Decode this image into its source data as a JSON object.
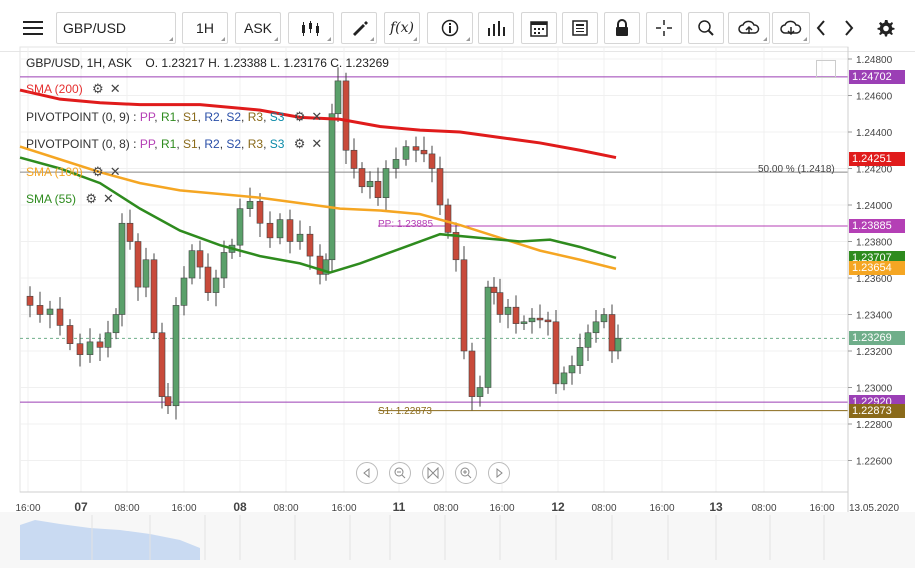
{
  "toolbar": {
    "menu_icon": "hamburger-icon",
    "symbol": "GBP/USD",
    "timeframe": "1H",
    "price_side": "ASK",
    "icons": [
      "candles-icon",
      "draw-icon",
      "fx-icon",
      "info-icon",
      "bars-icon",
      "calendar-icon",
      "news-icon",
      "lock-icon",
      "crosshair-icon",
      "zoom-icon",
      "cloud-upload-icon",
      "cloud-download-icon",
      "chevron-left-icon",
      "chevron-right-icon",
      "gear-icon"
    ]
  },
  "chart": {
    "header": "GBP/USD, 1H, ASK",
    "ohlc": "O. 1.23217 H. 1.23388 L. 1.23176 C. 1.23269",
    "indicators": [
      {
        "label": "SMA (200)",
        "color": "#e53030"
      },
      {
        "label": "PIVOTPOINT (0, 9)",
        "color": "#222222"
      },
      {
        "label": "PIVOTPOINT (0, 8)",
        "color": "#222222"
      },
      {
        "label": "SMA (100)",
        "color": "#f5a623"
      },
      {
        "label": "SMA (55)",
        "color": "#2e8b1e"
      }
    ],
    "pivot_levels_a": [
      "PP",
      "R1",
      "S1",
      "R2",
      "S2",
      "R3",
      "S3"
    ],
    "pivot_levels_b": [
      "PP",
      "R1",
      "S1",
      "R2",
      "S2",
      "R3",
      "S3"
    ],
    "fib_label": "50.00 % (1.2418)",
    "pp_label": "PP: 1.23885",
    "s1_label": "S1: 1.22873",
    "y_ticks": [
      "1.24800",
      "1.24600",
      "1.24400",
      "1.24200",
      "1.24000",
      "1.23800",
      "1.23600",
      "1.23400",
      "1.23200",
      "1.23000",
      "1.22800",
      "1.22600"
    ],
    "badges": [
      {
        "value": "1.24702",
        "color": "#9b3fb5"
      },
      {
        "value": "1.24251",
        "color": "#e01b1b"
      },
      {
        "value": "1.23885",
        "color": "#b43fb5"
      },
      {
        "value": "1.23707",
        "color": "#2e8b1e"
      },
      {
        "value": "1.23654",
        "color": "#f5a623"
      },
      {
        "value": "1.23269",
        "color": "#6fae8a"
      },
      {
        "value": "1.22920",
        "color": "#9b3fb5"
      },
      {
        "value": "1.22873",
        "color": "#8a6a1a"
      }
    ],
    "x_ticks": [
      "16:00",
      "07",
      "08:00",
      "16:00",
      "08",
      "08:00",
      "16:00",
      "11",
      "08:00",
      "16:00",
      "12",
      "08:00",
      "16:00",
      "13",
      "08:00",
      "16:00",
      "13.05.2020"
    ],
    "colors": {
      "up": "#5aa06a",
      "down": "#c84a3a",
      "sma200": "#e01b1b",
      "sma100": "#f5a623",
      "sma55": "#2e8b1e",
      "pivot": "#9b3fb5"
    }
  }
}
